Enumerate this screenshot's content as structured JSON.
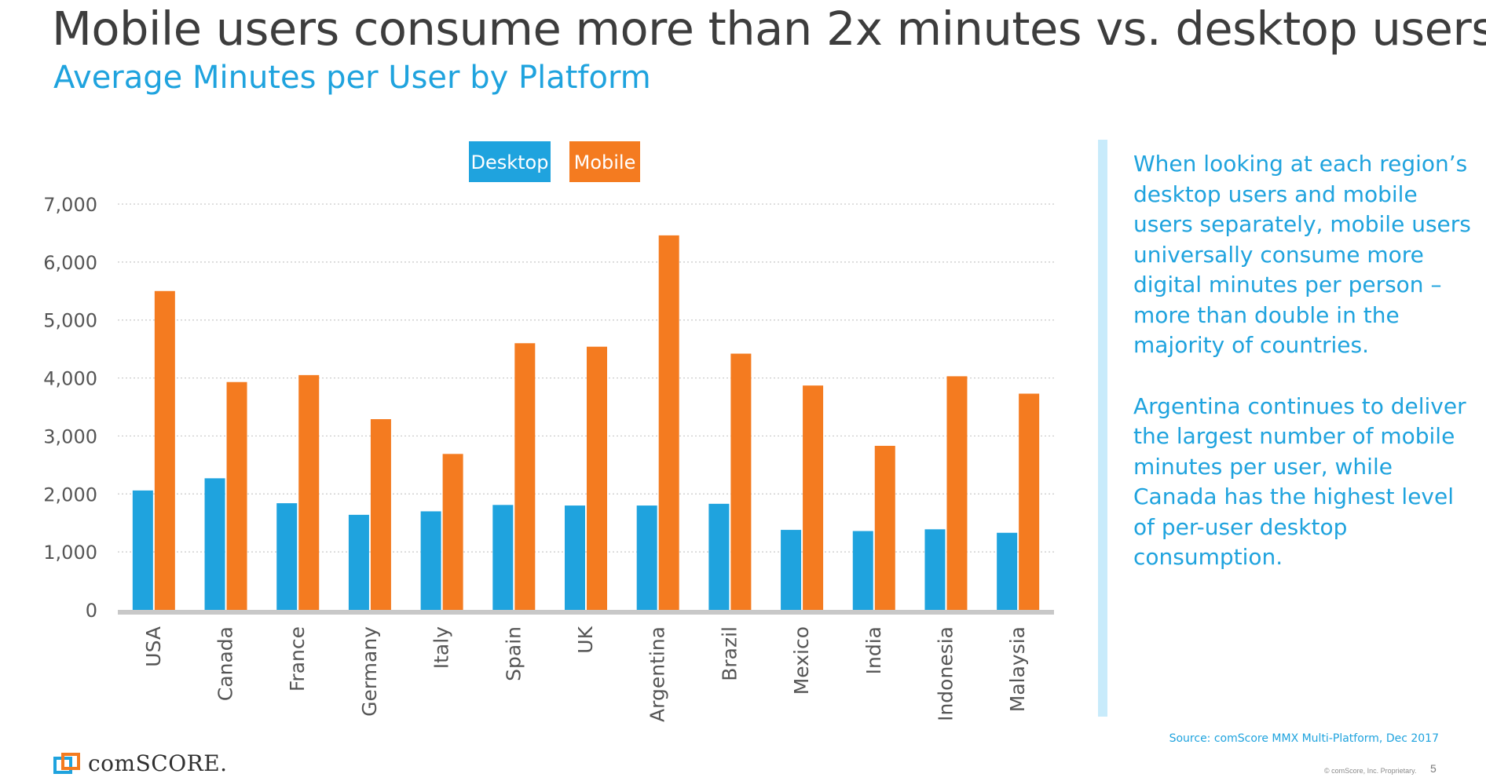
{
  "slide": {
    "title": "Mobile users consume more than 2x minutes vs. desktop users",
    "subtitle": "Average Minutes per User by Platform",
    "insight_p1": "When looking at each region’s desktop users and mobile users separately, mobile users universally consume more digital minutes per person – more than double in the majority of countries.",
    "insight_p2": "Argentina continues to deliver the largest number of mobile minutes per user, while Canada has the highest level of per-user desktop consumption.",
    "source": "Source: comScore MMX Multi-Platform, Dec 2017",
    "copyright": "© comScore, Inc. Proprietary.",
    "page_number": "5",
    "logo_text": "comSCORE."
  },
  "colors": {
    "desktop": "#1fa3de",
    "mobile": "#f47b20",
    "accent_text": "#1fa3de",
    "title_text": "#3d3d3d",
    "divider": "#c8ebfb"
  },
  "chart_data": {
    "type": "bar",
    "categories": [
      "USA",
      "Canada",
      "France",
      "Germany",
      "Italy",
      "Spain",
      "UK",
      "Argentina",
      "Brazil",
      "Mexico",
      "India",
      "Indonesia",
      "Malaysia"
    ],
    "series": [
      {
        "name": "Desktop",
        "values": [
          2060,
          2270,
          1840,
          1640,
          1700,
          1810,
          1800,
          1800,
          1830,
          1380,
          1360,
          1390,
          1330
        ]
      },
      {
        "name": "Mobile",
        "values": [
          5500,
          3930,
          4050,
          3290,
          2690,
          4600,
          4540,
          6460,
          4420,
          3870,
          2830,
          4030,
          3730
        ]
      }
    ],
    "title": "Average Minutes per User by Platform",
    "xlabel": "",
    "ylabel": "",
    "ylim": [
      0,
      7000
    ],
    "yticks": [
      "0",
      "1,000",
      "2,000",
      "3,000",
      "4,000",
      "5,000",
      "6,000",
      "7,000"
    ],
    "legend": "top-center",
    "grid": true
  }
}
